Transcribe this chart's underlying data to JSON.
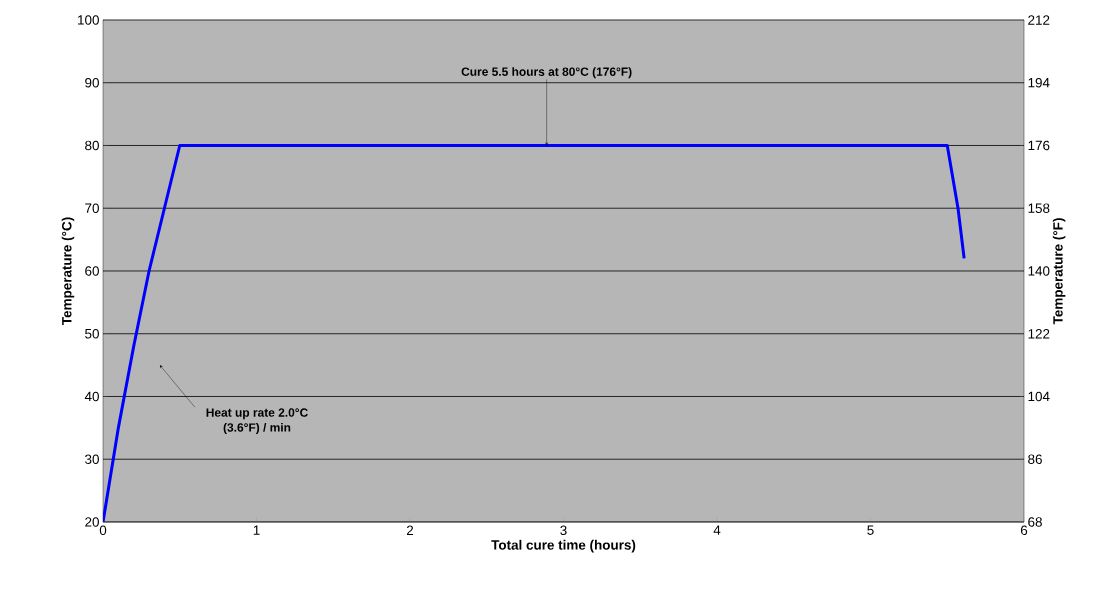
{
  "chart_data": {
    "type": "line",
    "xlabel": "Total cure time (hours)",
    "ylabel": "Temperature (°C)",
    "y2label": "Temperature (°F)",
    "x": [
      0,
      0.1,
      0.2,
      0.3,
      0.4,
      0.5,
      5.5,
      5.57,
      5.61
    ],
    "series": [
      {
        "color": "#0000ff",
        "values": [
          20,
          35,
          48,
          60,
          70,
          80,
          80,
          70,
          62
        ]
      }
    ],
    "xlim": [
      0,
      6
    ],
    "xticks": [
      0,
      1,
      2,
      3,
      4,
      5,
      6
    ],
    "ylim": [
      20,
      100
    ],
    "yticks": [
      20,
      30,
      40,
      50,
      60,
      70,
      80,
      90,
      100
    ],
    "y2lim": [
      68,
      212
    ],
    "y2ticks": [
      68,
      86,
      104,
      122,
      140,
      158,
      176,
      194,
      212
    ],
    "grid": "y",
    "marker": "none",
    "line_style": "solid",
    "annotations": [
      {
        "text": "Cure 5.5 hours at 80°C (176°F)",
        "x": 2.89,
        "y": 80
      },
      {
        "text": "Heat up rate 2.0°C (3.6°F) / min",
        "x": 0.37,
        "y": 45
      }
    ]
  }
}
